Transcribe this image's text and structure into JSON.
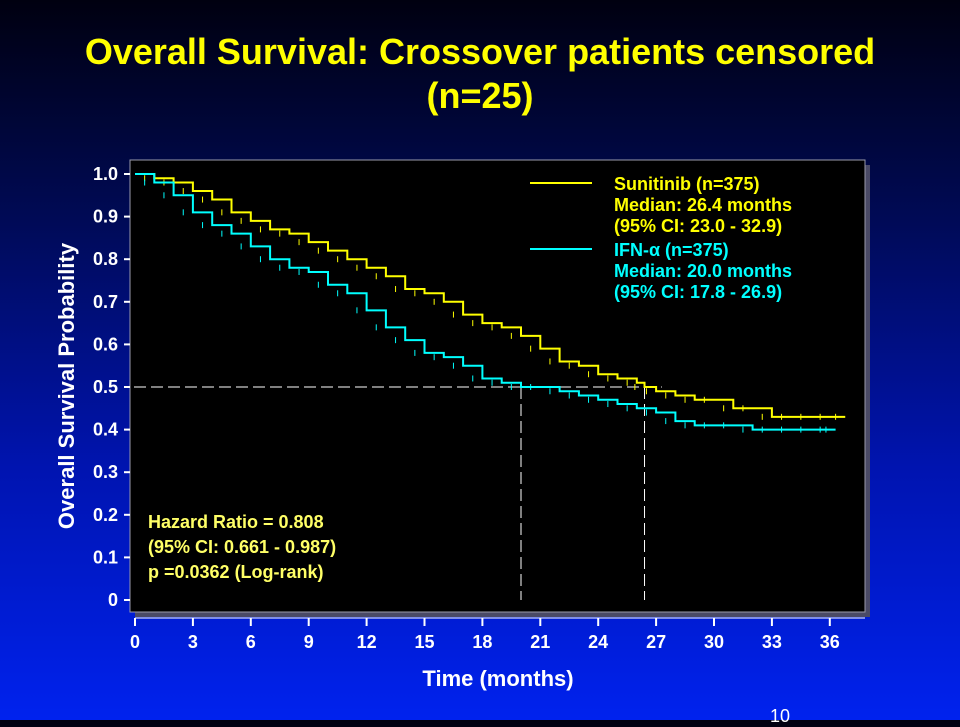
{
  "slide": {
    "title_line1": "Overall Survival: Crossover patients censored",
    "title_line2": "(n=25)",
    "slide_number": "10"
  },
  "colors": {
    "title": "#ffff00",
    "plot_bg": "#000000",
    "sunitinib": "#ffff00",
    "ifn": "#00ffff",
    "axis_text": "#ffffff",
    "annotation": "#ffff66"
  },
  "chart_data": {
    "type": "line",
    "xlabel": "Time (months)",
    "ylabel": "Overall Survival Probability",
    "xlim": [
      0,
      37.5
    ],
    "ylim": [
      0,
      1.0
    ],
    "x_ticks": [
      "0",
      "3",
      "6",
      "9",
      "12",
      "15",
      "18",
      "21",
      "24",
      "27",
      "30",
      "33",
      "36"
    ],
    "y_ticks": [
      "0",
      "0.1",
      "0.2",
      "0.3",
      "0.4",
      "0.5",
      "0.6",
      "0.7",
      "0.8",
      "0.9",
      "1.0"
    ],
    "median_reference_line": 0.5,
    "series": [
      {
        "name": "Sunitinib (n=375)",
        "color": "#ffff00",
        "median_label": "Median: 26.4 months",
        "ci_label": "(95% CI: 23.0 - 32.9)",
        "median": 26.4,
        "x": [
          0,
          1,
          2,
          3,
          4,
          5,
          6,
          7,
          8,
          9,
          10,
          11,
          12,
          13,
          14,
          15,
          16,
          17,
          18,
          19,
          20,
          21,
          22,
          23,
          24,
          25,
          26,
          26.4,
          27,
          28,
          29,
          30,
          31,
          32,
          33,
          34,
          35,
          36,
          36.8
        ],
        "y": [
          1.0,
          0.99,
          0.98,
          0.96,
          0.94,
          0.91,
          0.89,
          0.87,
          0.86,
          0.84,
          0.82,
          0.8,
          0.78,
          0.76,
          0.73,
          0.72,
          0.7,
          0.67,
          0.65,
          0.64,
          0.62,
          0.59,
          0.56,
          0.55,
          0.53,
          0.52,
          0.51,
          0.5,
          0.49,
          0.48,
          0.47,
          0.47,
          0.45,
          0.45,
          0.43,
          0.43,
          0.43,
          0.43,
          0.43
        ]
      },
      {
        "name": "IFN-α (n=375)",
        "color": "#00ffff",
        "median_label": "Median: 20.0 months",
        "ci_label": "(95% CI: 17.8 - 26.9)",
        "median": 20.0,
        "x": [
          0,
          1,
          2,
          3,
          4,
          5,
          6,
          7,
          8,
          9,
          10,
          11,
          12,
          13,
          14,
          15,
          16,
          17,
          18,
          19,
          20,
          21,
          22,
          23,
          24,
          25,
          26,
          27,
          28,
          29,
          30,
          31,
          32,
          33,
          34,
          35,
          36,
          36.3
        ],
        "y": [
          1.0,
          0.98,
          0.95,
          0.91,
          0.88,
          0.86,
          0.83,
          0.8,
          0.78,
          0.77,
          0.74,
          0.72,
          0.68,
          0.64,
          0.61,
          0.58,
          0.57,
          0.55,
          0.52,
          0.51,
          0.5,
          0.5,
          0.49,
          0.48,
          0.47,
          0.46,
          0.45,
          0.44,
          0.42,
          0.41,
          0.41,
          0.41,
          0.4,
          0.4,
          0.4,
          0.4,
          0.4,
          0.4
        ]
      }
    ],
    "annotations": {
      "hazard_ratio": "Hazard Ratio = 0.808",
      "ci": "(95% CI: 0.661 - 0.987)",
      "p_value": "p =0.0362 (Log-rank)"
    },
    "legend_position": "top-right",
    "grid": false
  }
}
